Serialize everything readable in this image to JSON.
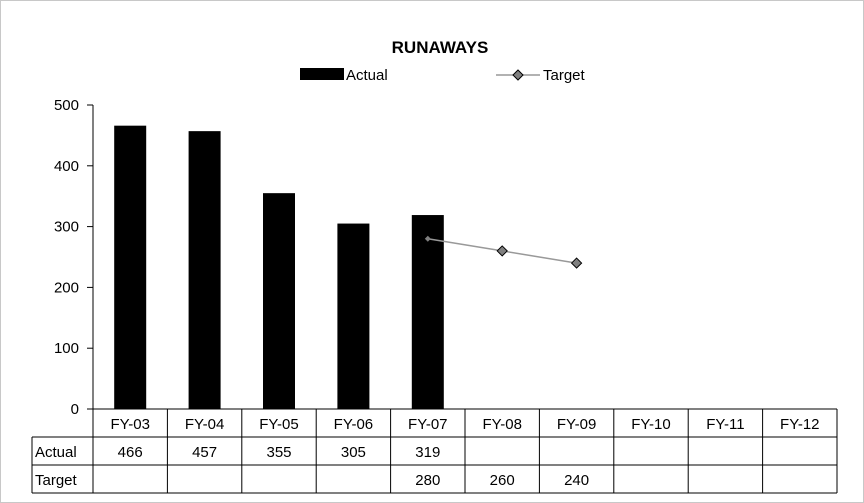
{
  "chart_data": {
    "type": "bar",
    "title": "RUNAWAYS",
    "categories": [
      "FY-03",
      "FY-04",
      "FY-05",
      "FY-06",
      "FY-07",
      "FY-08",
      "FY-09",
      "FY-10",
      "FY-11",
      "FY-12"
    ],
    "series": [
      {
        "name": "Actual",
        "kind": "bar",
        "color": "#000000",
        "values": [
          466,
          457,
          355,
          305,
          319,
          null,
          null,
          null,
          null,
          null
        ]
      },
      {
        "name": "Target",
        "kind": "line",
        "color": "#999999",
        "marker_color": "#808080",
        "values": [
          null,
          null,
          null,
          null,
          280,
          260,
          240,
          null,
          null,
          null
        ]
      }
    ],
    "ylim": [
      0,
      500
    ],
    "yticks": [
      0,
      100,
      200,
      300,
      400,
      500
    ],
    "ytick_labels": [
      "0",
      "100",
      "200",
      "300",
      "400",
      "500"
    ],
    "legend_position": "top-center",
    "grid": false,
    "data_table": {
      "row_labels": [
        "Actual",
        "Target"
      ],
      "rows": [
        [
          "466",
          "457",
          "355",
          "305",
          "319",
          "",
          "",
          "",
          "",
          ""
        ],
        [
          "",
          "",
          "",
          "",
          "280",
          "260",
          "240",
          "",
          "",
          ""
        ]
      ]
    }
  }
}
